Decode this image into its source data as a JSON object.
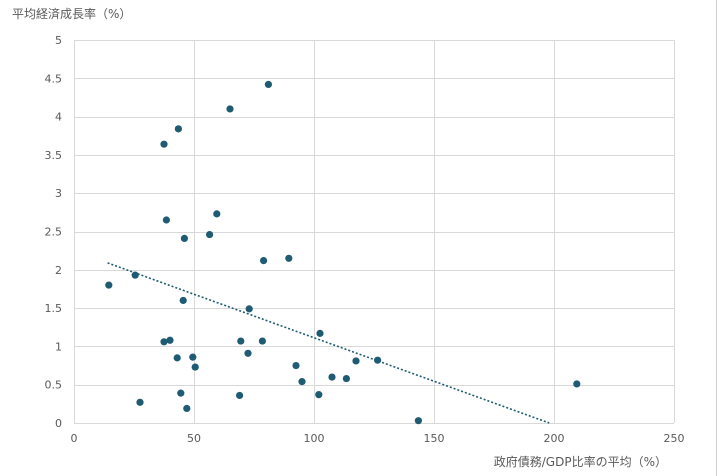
{
  "chart_data": {
    "type": "scatter",
    "title": "",
    "ylabel": "平均経済成長率（%）",
    "xlabel": "政府債務/GDP比率の平均（%）",
    "xlim": [
      0,
      250
    ],
    "ylim": [
      0,
      5
    ],
    "x_ticks": [
      0,
      50,
      100,
      150,
      200,
      250
    ],
    "y_ticks": [
      0,
      0.5,
      1,
      1.5,
      2,
      2.5,
      3,
      3.5,
      4,
      4.5,
      5
    ],
    "y_tick_labels": [
      "0",
      "0.5",
      "1",
      "1.5",
      "2",
      "2.5",
      "3",
      "3.5",
      "4",
      "4.5",
      "5"
    ],
    "grid": true,
    "marker_color": "#1f5c73",
    "trendline": {
      "type": "linear",
      "style": "dotted",
      "from": [
        14,
        2.09
      ],
      "to": [
        198,
        0
      ]
    },
    "series": [
      {
        "points": [
          {
            "x": 14.5,
            "y": 1.8
          },
          {
            "x": 25.5,
            "y": 1.93
          },
          {
            "x": 27.5,
            "y": 0.27
          },
          {
            "x": 37.5,
            "y": 1.06
          },
          {
            "x": 37.5,
            "y": 3.64
          },
          {
            "x": 38.5,
            "y": 2.65
          },
          {
            "x": 40,
            "y": 1.08
          },
          {
            "x": 43,
            "y": 0.85
          },
          {
            "x": 43.5,
            "y": 3.84
          },
          {
            "x": 44.5,
            "y": 0.39
          },
          {
            "x": 45.5,
            "y": 1.6
          },
          {
            "x": 46,
            "y": 2.41
          },
          {
            "x": 47,
            "y": 0.19
          },
          {
            "x": 49.5,
            "y": 0.86
          },
          {
            "x": 50.5,
            "y": 0.73
          },
          {
            "x": 56.5,
            "y": 2.46
          },
          {
            "x": 59.5,
            "y": 2.73
          },
          {
            "x": 65,
            "y": 4.1
          },
          {
            "x": 69,
            "y": 0.36
          },
          {
            "x": 69.5,
            "y": 1.07
          },
          {
            "x": 72.5,
            "y": 0.91
          },
          {
            "x": 73,
            "y": 1.49
          },
          {
            "x": 78.5,
            "y": 1.07
          },
          {
            "x": 79,
            "y": 2.12
          },
          {
            "x": 81,
            "y": 4.42
          },
          {
            "x": 89.5,
            "y": 2.15
          },
          {
            "x": 92.5,
            "y": 0.75
          },
          {
            "x": 95,
            "y": 0.54
          },
          {
            "x": 102,
            "y": 0.37
          },
          {
            "x": 102.5,
            "y": 1.17
          },
          {
            "x": 107.5,
            "y": 0.6
          },
          {
            "x": 113.5,
            "y": 0.58
          },
          {
            "x": 117.5,
            "y": 0.81
          },
          {
            "x": 126.5,
            "y": 0.82
          },
          {
            "x": 143.5,
            "y": 0.03
          },
          {
            "x": 209.5,
            "y": 0.51
          }
        ]
      }
    ]
  }
}
